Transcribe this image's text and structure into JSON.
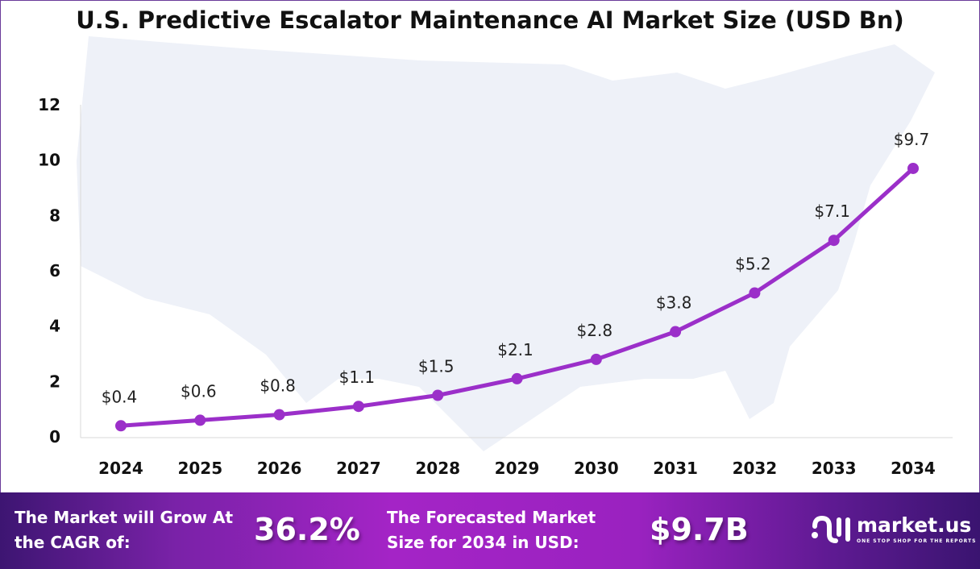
{
  "chart_data": {
    "type": "line",
    "title": "U.S. Predictive Escalator Maintenance AI Market Size (USD Bn)",
    "categories": [
      "2024",
      "2025",
      "2026",
      "2027",
      "2028",
      "2029",
      "2030",
      "2031",
      "2032",
      "2033",
      "2034"
    ],
    "values": [
      0.4,
      0.6,
      0.8,
      1.1,
      1.5,
      2.1,
      2.8,
      3.8,
      5.2,
      7.1,
      9.7
    ],
    "data_labels": [
      "$0.4",
      "$0.6",
      "$0.8",
      "$1.1",
      "$1.5",
      "$2.1",
      "$2.8",
      "$3.8",
      "$5.2",
      "$7.1",
      "$9.7"
    ],
    "yticks": [
      "0",
      "2",
      "4",
      "6",
      "8",
      "10",
      "12"
    ],
    "ylim": [
      0,
      12
    ],
    "grid": false,
    "line_color": "#9b2fc9",
    "background": "US map silhouette"
  },
  "footer": {
    "cagr_label": "The Market will Grow At the CAGR of:",
    "cagr_value": "36.2%",
    "forecast_label": "The Forecasted Market Size for 2034 in USD:",
    "forecast_value": "$9.7B",
    "logo_name": "market.us",
    "logo_tagline": "ONE STOP SHOP FOR THE REPORTS"
  }
}
